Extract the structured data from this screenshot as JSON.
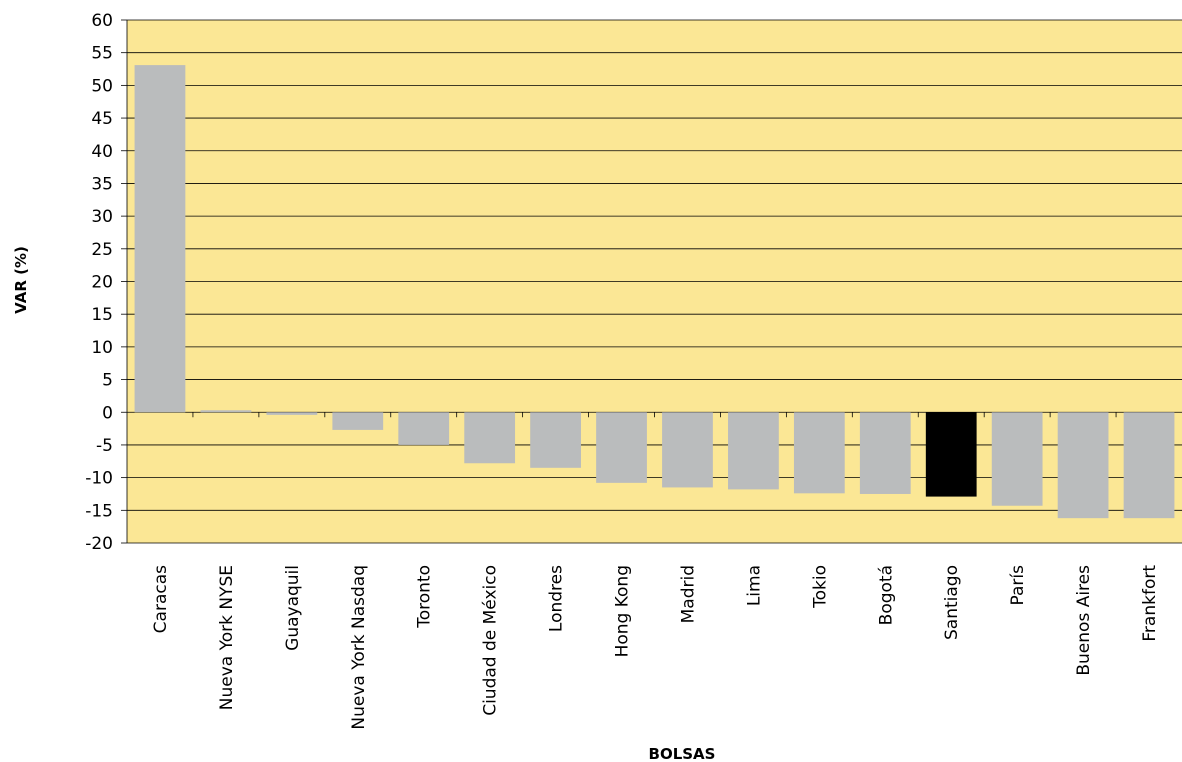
{
  "chart_data": {
    "type": "bar",
    "title": "",
    "xlabel": "BOLSAS",
    "ylabel": "VAR (%)",
    "ylim": [
      -20,
      60
    ],
    "ytick_step": 5,
    "grid": true,
    "legend": "none",
    "categories": [
      "Caracas",
      "Nueva York NYSE",
      "Guayaquil",
      "Nueva York Nasdaq",
      "Toronto",
      "Ciudad de México",
      "Londres",
      "Hong Kong",
      "Madrid",
      "Lima",
      "Tokio",
      "Bogotá",
      "Santiago",
      "París",
      "Buenos Aires",
      "Frankfort"
    ],
    "values": [
      53.1,
      0.3,
      -0.4,
      -2.7,
      -5.0,
      -7.8,
      -8.5,
      -10.8,
      -11.5,
      -11.8,
      -12.4,
      -12.5,
      -12.9,
      -14.3,
      -16.2,
      -16.2
    ],
    "highlight_category": "Santiago",
    "colors": {
      "plot_background": "#fbe795",
      "bar": "#babcbd",
      "highlight_bar": "#000000",
      "grid": "#000000"
    }
  }
}
